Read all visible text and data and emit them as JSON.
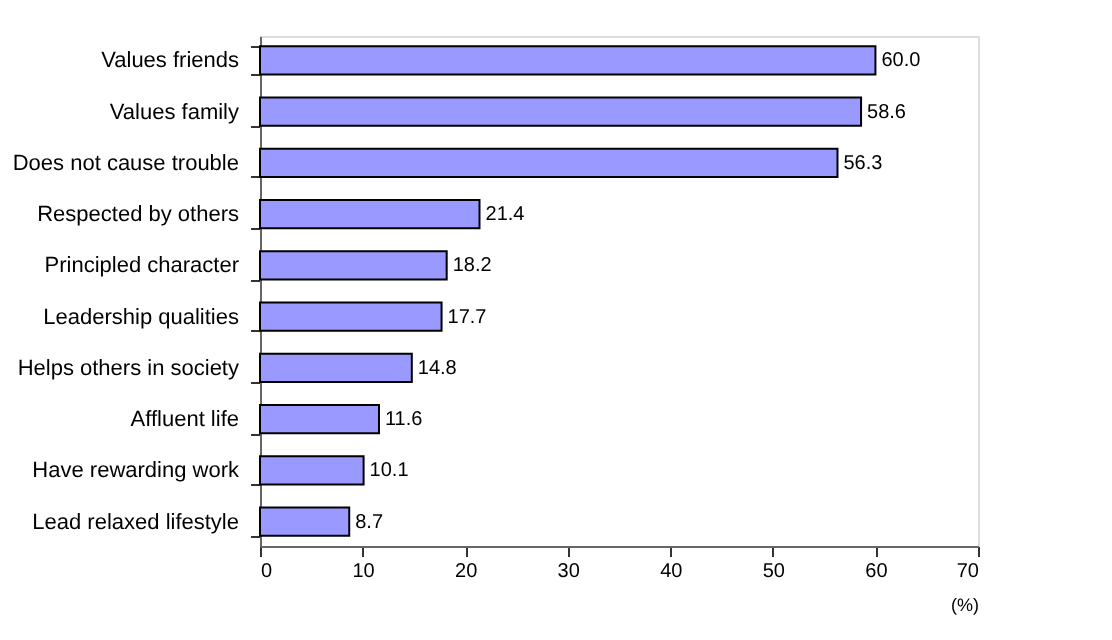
{
  "chart_data": {
    "type": "bar",
    "orientation": "horizontal",
    "categories": [
      "Values friends",
      "Values family",
      "Does not cause trouble",
      "Respected by others",
      "Principled character",
      "Leadership qualities",
      "Helps others in society",
      "Affluent life",
      "Have rewarding work",
      "Lead relaxed lifestyle"
    ],
    "values": [
      60.0,
      58.6,
      56.3,
      21.4,
      18.2,
      17.7,
      14.8,
      11.6,
      10.1,
      8.7
    ],
    "value_labels": [
      "60.0",
      "58.6",
      "56.3",
      "21.4",
      "18.2",
      "17.7",
      "14.8",
      "11.6",
      "10.1",
      "8.7"
    ],
    "color": "#9999ff",
    "xlim": [
      0,
      70
    ],
    "xticks": [
      0,
      10,
      20,
      30,
      40,
      50,
      60,
      70
    ],
    "xlabel": "(%)",
    "grid": false
  }
}
